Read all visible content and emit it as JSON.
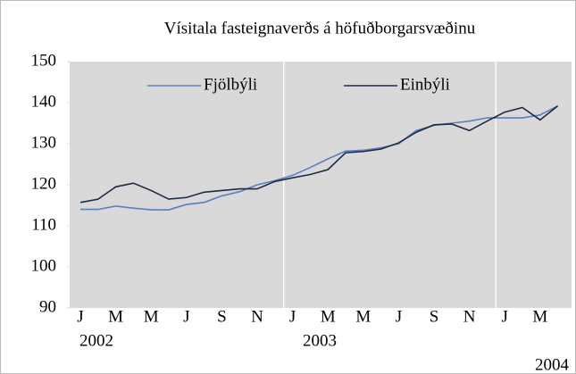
{
  "chart_data": {
    "type": "line",
    "title": "Vísitala fasteignaverðs á höfuðborgarsvæðinu",
    "categories": [
      "J",
      null,
      "M",
      null,
      "M",
      null,
      "J",
      null,
      "S",
      null,
      "N",
      null,
      "J",
      null,
      "M",
      null,
      "M",
      null,
      "J",
      null,
      "S",
      null,
      "N",
      null,
      "J",
      null,
      "M",
      null
    ],
    "year_labels": [
      "2002",
      "2003",
      "2004"
    ],
    "series": [
      {
        "name": "Fjölbýli",
        "color": "#5b7fbf",
        "values": [
          114,
          114,
          114.8,
          114.3,
          113.9,
          113.9,
          115.2,
          115.7,
          117.3,
          118.3,
          120,
          121,
          122.3,
          124.2,
          126.3,
          128.2,
          128.4,
          129,
          130,
          133.2,
          134.5,
          135,
          135.5,
          136.3,
          136.3,
          136.3,
          137,
          139.2
        ]
      },
      {
        "name": "Einbýli",
        "color": "#1f2a44",
        "values": [
          115.7,
          116.5,
          119.5,
          120.4,
          118.6,
          116.5,
          116.9,
          118.2,
          118.6,
          119,
          119,
          120.8,
          121.7,
          122.5,
          123.7,
          127.8,
          128.1,
          128.7,
          130.2,
          132.8,
          134.6,
          134.8,
          133.2,
          135.5,
          137.7,
          138.8,
          135.8,
          139.2
        ]
      }
    ],
    "ylim": [
      90,
      150
    ],
    "yticks": [
      90,
      100,
      110,
      120,
      130,
      140,
      150
    ],
    "grid": false,
    "legend": "top"
  }
}
